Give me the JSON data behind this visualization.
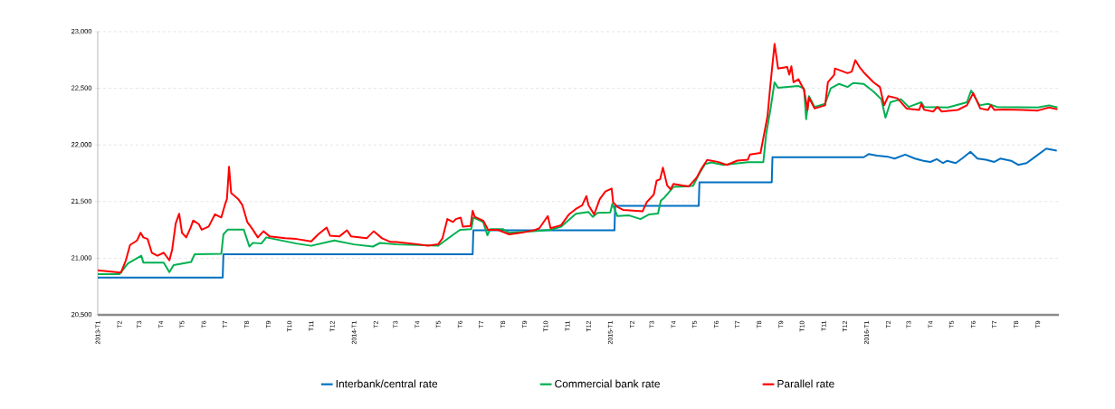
{
  "chart_data": {
    "type": "line",
    "xlim": [
      "2013-01",
      "2016-10"
    ],
    "ylim": [
      20500,
      23000
    ],
    "xticks": [
      {
        "value": "2013-01",
        "label": "2013-T1"
      },
      {
        "value": "2013-02",
        "label": "T2"
      },
      {
        "value": "2013-03",
        "label": "T3"
      },
      {
        "value": "2013-04",
        "label": "T4"
      },
      {
        "value": "2013-05",
        "label": "T5"
      },
      {
        "value": "2013-06",
        "label": "T6"
      },
      {
        "value": "2013-07",
        "label": "T7"
      },
      {
        "value": "2013-08",
        "label": "T8"
      },
      {
        "value": "2013-09",
        "label": "T9"
      },
      {
        "value": "2013-10",
        "label": "T10"
      },
      {
        "value": "2013-11",
        "label": "T11"
      },
      {
        "value": "2013-12",
        "label": "T12"
      },
      {
        "value": "2014-01",
        "label": "2014-T1"
      },
      {
        "value": "2014-02",
        "label": "T2"
      },
      {
        "value": "2014-03",
        "label": "T3"
      },
      {
        "value": "2014-04",
        "label": "T4"
      },
      {
        "value": "2014-05",
        "label": "T5"
      },
      {
        "value": "2014-06",
        "label": "T6"
      },
      {
        "value": "2014-07",
        "label": "T7"
      },
      {
        "value": "2014-08",
        "label": "T8"
      },
      {
        "value": "2014-09",
        "label": "T9"
      },
      {
        "value": "2014-10",
        "label": "T10"
      },
      {
        "value": "2014-11",
        "label": "T11"
      },
      {
        "value": "2014-12",
        "label": "T12"
      },
      {
        "value": "2015-01",
        "label": "2015-T1"
      },
      {
        "value": "2015-02",
        "label": "T2"
      },
      {
        "value": "2015-03",
        "label": "T3"
      },
      {
        "value": "2015-04",
        "label": "T4"
      },
      {
        "value": "2015-05",
        "label": "T5"
      },
      {
        "value": "2015-06",
        "label": "T6"
      },
      {
        "value": "2015-07",
        "label": "T7"
      },
      {
        "value": "2015-08",
        "label": "T8"
      },
      {
        "value": "2015-09",
        "label": "T9"
      },
      {
        "value": "2015-10",
        "label": "T10"
      },
      {
        "value": "2015-11",
        "label": "T11"
      },
      {
        "value": "2015-12",
        "label": "T12"
      },
      {
        "value": "2016-01",
        "label": "2016-T1"
      },
      {
        "value": "2016-02",
        "label": "T2"
      },
      {
        "value": "2016-03",
        "label": "T3"
      },
      {
        "value": "2016-04",
        "label": "T4"
      },
      {
        "value": "2016-05",
        "label": "T5"
      },
      {
        "value": "2016-06",
        "label": "T6"
      },
      {
        "value": "2016-07",
        "label": "T7"
      },
      {
        "value": "2016-08",
        "label": "T8"
      },
      {
        "value": "2016-09",
        "label": "T9"
      }
    ],
    "yticks": [
      {
        "value": 20500,
        "label": "20,500"
      },
      {
        "value": 21000,
        "label": "21,000"
      },
      {
        "value": 21500,
        "label": "21,500"
      },
      {
        "value": 22000,
        "label": "22,000"
      },
      {
        "value": 22500,
        "label": "22,500"
      },
      {
        "value": 23000,
        "label": "23,000"
      }
    ],
    "grid": "y",
    "legend": "bottom",
    "marker": "none",
    "line_style": "solid",
    "series": [
      {
        "name": "Interbank/central rate",
        "color": "#0070c0",
        "x": [
          "2013-01-01",
          "2013-06-28",
          "2013-06-29",
          "2014-06-19",
          "2014-06-20",
          "2015-01-07",
          "2015-01-08",
          "2015-05-07",
          "2015-05-08",
          "2015-08-19",
          "2015-08-20",
          "2015-12-28",
          "2016-01-04",
          "2016-01-16",
          "2016-02-01",
          "2016-02-10",
          "2016-02-25",
          "2016-03-10",
          "2016-03-22",
          "2016-04-01",
          "2016-04-10",
          "2016-04-19",
          "2016-04-25",
          "2016-05-07",
          "2016-05-16",
          "2016-05-28",
          "2016-06-07",
          "2016-06-19",
          "2016-07-01",
          "2016-07-10",
          "2016-07-25",
          "2016-08-04",
          "2016-08-16",
          "2016-08-28",
          "2016-09-13",
          "2016-09-28"
        ],
        "values": [
          20830,
          20830,
          21036,
          21036,
          21246,
          21246,
          21462,
          21462,
          21670,
          21670,
          21892,
          21892,
          21919,
          21905,
          21895,
          21880,
          21915,
          21880,
          21860,
          21850,
          21875,
          21840,
          21860,
          21840,
          21880,
          21940,
          21880,
          21870,
          21850,
          21880,
          21860,
          21824,
          21840,
          21895,
          21968,
          21949
        ]
      },
      {
        "name": "Commercial bank rate",
        "color": "#00b050",
        "x": [
          "2013-01-01",
          "2013-02-01",
          "2013-02-13",
          "2013-03-04",
          "2013-03-07",
          "2013-04-05",
          "2013-04-13",
          "2013-04-19",
          "2013-05-14",
          "2013-05-19",
          "2013-06-26",
          "2013-06-29",
          "2013-07-05",
          "2013-07-28",
          "2013-08-05",
          "2013-08-10",
          "2013-08-22",
          "2013-08-29",
          "2013-10-11",
          "2013-11-01",
          "2013-12-04",
          "2014-01-01",
          "2014-01-28",
          "2014-02-07",
          "2014-03-03",
          "2014-05-01",
          "2014-05-11",
          "2014-06-01",
          "2014-06-17",
          "2014-06-20",
          "2014-07-04",
          "2014-07-10",
          "2014-07-14",
          "2014-08-01",
          "2014-08-10",
          "2014-09-14",
          "2014-10-08",
          "2014-10-23",
          "2014-11-13",
          "2014-12-01",
          "2014-12-07",
          "2014-12-14",
          "2015-01-01",
          "2015-01-04",
          "2015-01-11",
          "2015-01-28",
          "2015-02-13",
          "2015-02-25",
          "2015-03-10",
          "2015-03-14",
          "2015-03-19",
          "2015-04-01",
          "2015-04-19",
          "2015-04-29",
          "2015-05-07",
          "2015-05-16",
          "2015-05-25",
          "2015-06-11",
          "2015-07-16",
          "2015-08-07",
          "2015-08-11",
          "2015-08-17",
          "2015-08-23",
          "2015-08-28",
          "2015-09-26",
          "2015-10-04",
          "2015-10-07",
          "2015-10-11",
          "2015-10-19",
          "2015-11-03",
          "2015-11-11",
          "2015-11-23",
          "2015-12-05",
          "2015-12-13",
          "2015-12-28",
          "2016-01-11",
          "2016-01-22",
          "2016-01-28",
          "2016-02-04",
          "2016-02-19",
          "2016-03-01",
          "2016-03-19",
          "2016-03-23",
          "2016-04-26",
          "2016-05-23",
          "2016-05-29",
          "2016-06-10",
          "2016-06-22",
          "2016-07-05",
          "2016-09-01",
          "2016-09-17",
          "2016-09-29"
        ],
        "values": [
          20860,
          20860,
          20954,
          21022,
          20962,
          20962,
          20878,
          20940,
          20967,
          21035,
          21040,
          21211,
          21252,
          21252,
          21103,
          21136,
          21130,
          21184,
          21130,
          21110,
          21157,
          21122,
          21103,
          21135,
          21122,
          21111,
          21157,
          21251,
          21257,
          21359,
          21319,
          21203,
          21257,
          21257,
          21224,
          21238,
          21251,
          21278,
          21392,
          21408,
          21365,
          21400,
          21405,
          21481,
          21373,
          21378,
          21346,
          21386,
          21395,
          21508,
          21535,
          21630,
          21635,
          21640,
          21738,
          21832,
          21846,
          21824,
          21848,
          21848,
          22092,
          22309,
          22553,
          22504,
          22520,
          22499,
          22228,
          22431,
          22336,
          22363,
          22499,
          22539,
          22512,
          22547,
          22539,
          22471,
          22404,
          22241,
          22377,
          22404,
          22336,
          22377,
          22336,
          22331,
          22377,
          22480,
          22350,
          22363,
          22336,
          22331,
          22350,
          22331
        ]
      },
      {
        "name": "Parallel rate",
        "color": "#ff0000",
        "x": [
          "2013-01-01",
          "2013-02-03",
          "2013-02-10",
          "2013-02-16",
          "2013-02-26",
          "2013-03-03",
          "2013-03-07",
          "2013-03-13",
          "2013-03-19",
          "2013-03-27",
          "2013-04-05",
          "2013-04-13",
          "2013-04-17",
          "2013-04-22",
          "2013-04-27",
          "2013-05-01",
          "2013-05-07",
          "2013-05-13",
          "2013-05-17",
          "2013-05-25",
          "2013-05-29",
          "2013-06-08",
          "2013-06-17",
          "2013-06-26",
          "2013-07-01",
          "2013-07-04",
          "2013-07-07",
          "2013-07-10",
          "2013-07-20",
          "2013-07-26",
          "2013-08-02",
          "2013-08-10",
          "2013-08-17",
          "2013-08-25",
          "2013-09-03",
          "2013-09-25",
          "2013-10-11",
          "2013-11-01",
          "2013-11-11",
          "2013-11-23",
          "2013-11-28",
          "2013-12-11",
          "2013-12-22",
          "2013-12-28",
          "2014-01-19",
          "2014-01-29",
          "2014-02-10",
          "2014-02-22",
          "2014-03-03",
          "2014-04-01",
          "2014-04-16",
          "2014-05-01",
          "2014-05-07",
          "2014-05-14",
          "2014-05-22",
          "2014-05-26",
          "2014-06-02",
          "2014-06-05",
          "2014-06-16",
          "2014-06-19",
          "2014-06-22",
          "2014-07-04",
          "2014-07-11",
          "2014-07-25",
          "2014-08-10",
          "2014-08-26",
          "2014-09-14",
          "2014-09-22",
          "2014-10-04",
          "2014-10-08",
          "2014-10-23",
          "2014-11-03",
          "2014-11-13",
          "2014-11-22",
          "2014-11-28",
          "2014-12-01",
          "2014-12-09",
          "2014-12-17",
          "2014-12-25",
          "2015-01-03",
          "2015-01-05",
          "2015-01-11",
          "2015-01-19",
          "2015-02-16",
          "2015-02-22",
          "2015-03-04",
          "2015-03-08",
          "2015-03-13",
          "2015-03-17",
          "2015-03-23",
          "2015-03-28",
          "2015-04-01",
          "2015-04-14",
          "2015-04-23",
          "2015-05-04",
          "2015-05-11",
          "2015-05-19",
          "2015-06-03",
          "2015-06-16",
          "2015-07-01",
          "2015-07-16",
          "2015-07-19",
          "2015-08-03",
          "2015-08-08",
          "2015-08-13",
          "2015-08-17",
          "2015-08-23",
          "2015-08-28",
          "2015-09-10",
          "2015-09-13",
          "2015-09-16",
          "2015-09-19",
          "2015-09-26",
          "2015-10-04",
          "2015-10-09",
          "2015-10-11",
          "2015-10-19",
          "2015-11-03",
          "2015-11-07",
          "2015-11-16",
          "2015-11-17",
          "2015-12-05",
          "2015-12-11",
          "2015-12-16",
          "2015-12-22",
          "2015-12-29",
          "2016-01-11",
          "2016-01-20",
          "2016-01-26",
          "2016-02-01",
          "2016-02-14",
          "2016-02-27",
          "2016-03-16",
          "2016-03-19",
          "2016-03-23",
          "2016-04-05",
          "2016-04-11",
          "2016-04-17",
          "2016-05-10",
          "2016-05-23",
          "2016-06-01",
          "2016-06-11",
          "2016-06-22",
          "2016-06-26",
          "2016-07-01",
          "2016-07-13",
          "2016-08-10",
          "2016-09-01",
          "2016-09-17",
          "2016-09-29"
        ],
        "values": [
          20894,
          20873,
          20981,
          21117,
          21157,
          21225,
          21184,
          21170,
          21049,
          21022,
          21049,
          20981,
          21076,
          21306,
          21393,
          21225,
          21184,
          21266,
          21333,
          21301,
          21252,
          21280,
          21388,
          21360,
          21469,
          21523,
          21808,
          21577,
          21523,
          21469,
          21320,
          21252,
          21184,
          21238,
          21192,
          21176,
          21170,
          21149,
          21211,
          21271,
          21198,
          21192,
          21247,
          21192,
          21176,
          21238,
          21176,
          21144,
          21143,
          21124,
          21111,
          21124,
          21176,
          21346,
          21320,
          21346,
          21359,
          21278,
          21284,
          21419,
          21365,
          21332,
          21251,
          21251,
          21211,
          21224,
          21246,
          21265,
          21373,
          21265,
          21292,
          21386,
          21435,
          21468,
          21549,
          21468,
          21386,
          21521,
          21589,
          21616,
          21495,
          21454,
          21427,
          21414,
          21495,
          21562,
          21684,
          21697,
          21800,
          21643,
          21608,
          21657,
          21643,
          21635,
          21711,
          21792,
          21868,
          21851,
          21824,
          21862,
          21870,
          21916,
          21930,
          22092,
          22255,
          22526,
          22892,
          22675,
          22688,
          22620,
          22694,
          22553,
          22580,
          22485,
          22309,
          22417,
          22322,
          22350,
          22553,
          22620,
          22675,
          22634,
          22648,
          22748,
          22688,
          22634,
          22553,
          22512,
          22350,
          22431,
          22412,
          22322,
          22309,
          22363,
          22310,
          22295,
          22336,
          22295,
          22309,
          22350,
          22458,
          22322,
          22309,
          22350,
          22310,
          22314,
          22310,
          22304,
          22331,
          22314
        ]
      }
    ]
  }
}
